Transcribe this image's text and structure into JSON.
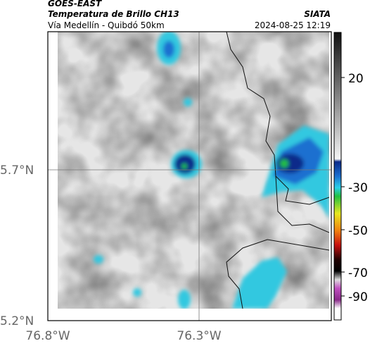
{
  "header": {
    "satellite": "GOES-EAST",
    "title": "Temperatura de Brillo CH13",
    "subtitle": "Vía Medellín - Quibdó 50km",
    "source": "SIATA",
    "datetime": "2024-08-25 12:19"
  },
  "axes": {
    "latitudes": [
      "5.7°N",
      "5.2°N"
    ],
    "longitudes": [
      "76.8°W",
      "76.3°W"
    ]
  },
  "colorbar": {
    "labels": [
      "20",
      "-30",
      "-50",
      "-70",
      "-90"
    ]
  }
}
